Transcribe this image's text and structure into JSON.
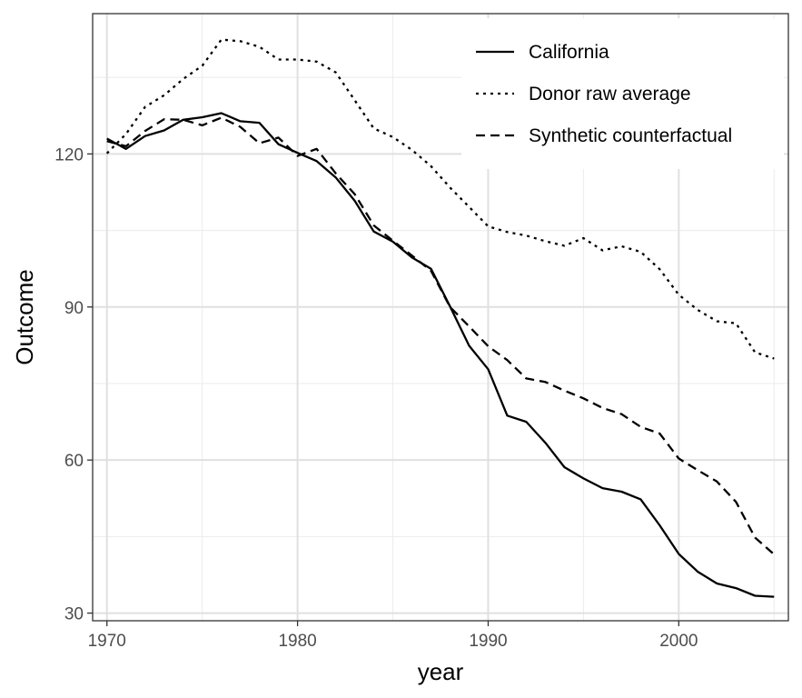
{
  "chart_data": {
    "type": "line",
    "title": "",
    "xlabel": "year",
    "ylabel": "Outcome",
    "xlim": [
      1969.25,
      2005.75
    ],
    "ylim": [
      28.5,
      147.5
    ],
    "x_ticks": [
      1970,
      1980,
      1990,
      2000
    ],
    "y_ticks": [
      30,
      60,
      90,
      120
    ],
    "x_tick_labels": [
      "1970",
      "1980",
      "1990",
      "2000"
    ],
    "y_tick_labels": [
      "30",
      "60",
      "90",
      "120"
    ],
    "grid": true,
    "legend_position": "top-right",
    "x": [
      1970,
      1971,
      1972,
      1973,
      1974,
      1975,
      1976,
      1977,
      1978,
      1979,
      1980,
      1981,
      1982,
      1983,
      1984,
      1985,
      1986,
      1987,
      1988,
      1989,
      1990,
      1991,
      1992,
      1993,
      1994,
      1995,
      1996,
      1997,
      1998,
      1999,
      2000,
      2001,
      2002,
      2003,
      2004,
      2005
    ],
    "series": [
      {
        "name": "California",
        "linestyle": "solid",
        "values": [
          123.0,
          121.0,
          123.5,
          124.6,
          126.7,
          127.2,
          128.0,
          126.4,
          126.1,
          121.9,
          120.2,
          118.6,
          115.4,
          110.8,
          104.8,
          102.8,
          99.7,
          97.5,
          90.1,
          82.4,
          77.8,
          68.7,
          67.5,
          63.4,
          58.6,
          56.4,
          54.5,
          53.8,
          52.3,
          47.2,
          41.6,
          38.1,
          35.8,
          34.9,
          33.4,
          33.2
        ]
      },
      {
        "name": "Donor raw average",
        "linestyle": "dotted",
        "values": [
          120.1,
          123.9,
          129.2,
          131.5,
          134.7,
          137.3,
          142.4,
          142.1,
          141.0,
          138.5,
          138.5,
          138.1,
          136.0,
          130.5,
          125.0,
          123.3,
          120.8,
          117.6,
          113.4,
          109.6,
          105.8,
          104.7,
          104.0,
          102.9,
          102.0,
          103.5,
          101.1,
          101.9,
          100.8,
          97.4,
          92.4,
          89.4,
          87.2,
          86.8,
          81.1,
          79.9
        ]
      },
      {
        "name": "Synthetic counterfactual",
        "linestyle": "dashed",
        "values": [
          122.5,
          121.5,
          124.5,
          126.8,
          126.7,
          125.6,
          127.1,
          125.3,
          122.1,
          123.2,
          119.6,
          121.0,
          116.2,
          112.1,
          106.0,
          103.0,
          100.1,
          97.1,
          90.0,
          86.2,
          82.3,
          79.6,
          76.0,
          75.3,
          73.6,
          72.1,
          70.2,
          69.0,
          66.5,
          65.2,
          60.3,
          58.0,
          55.8,
          51.8,
          44.8,
          41.5
        ]
      }
    ]
  }
}
